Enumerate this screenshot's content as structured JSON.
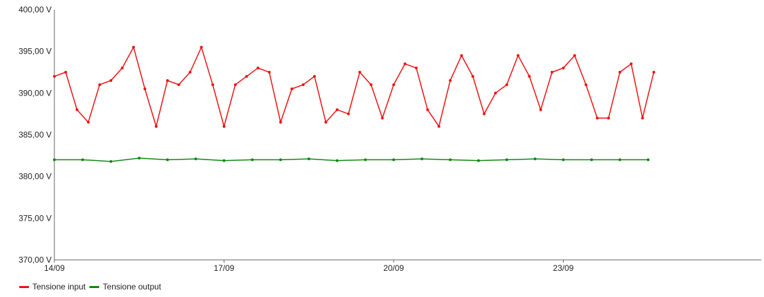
{
  "chart_data": {
    "type": "line",
    "title": "",
    "xlabel": "",
    "ylabel": "",
    "ylim": [
      370,
      400
    ],
    "yticks": [
      "370,00 V",
      "375,00 V",
      "380,00 V",
      "385,00 V",
      "390,00 V",
      "395,00 V",
      "400,00 V"
    ],
    "xlim": [
      0,
      12.5
    ],
    "xticks": [
      {
        "x": 0,
        "label": "14/09"
      },
      {
        "x": 3,
        "label": "17/09"
      },
      {
        "x": 6,
        "label": "20/09"
      },
      {
        "x": 9,
        "label": "23/09"
      }
    ],
    "grid": false,
    "legend_position": "bottom-left",
    "series": [
      {
        "name": "Tensione input",
        "color": "#ee1111",
        "x": [
          0.0,
          0.2,
          0.4,
          0.6,
          0.8,
          1.0,
          1.2,
          1.4,
          1.6,
          1.8,
          2.0,
          2.2,
          2.4,
          2.6,
          2.8,
          3.0,
          3.2,
          3.4,
          3.6,
          3.8,
          4.0,
          4.2,
          4.4,
          4.6,
          4.8,
          5.0,
          5.2,
          5.4,
          5.6,
          5.8,
          6.0,
          6.2,
          6.4,
          6.6,
          6.8,
          7.0,
          7.2,
          7.4,
          7.6,
          7.8,
          8.0,
          8.2,
          8.4,
          8.6,
          8.8,
          9.0,
          9.2,
          9.4,
          9.6,
          9.8,
          10.0,
          10.2,
          10.4,
          10.6
        ],
        "y": [
          392.0,
          392.5,
          388.0,
          386.5,
          391.0,
          391.5,
          393.0,
          395.5,
          390.5,
          386.0,
          391.5,
          391.0,
          392.5,
          395.5,
          391.0,
          386.0,
          391.0,
          392.0,
          393.0,
          392.5,
          386.5,
          390.5,
          391.0,
          392.0,
          386.5,
          388.0,
          387.5,
          392.5,
          391.0,
          387.0,
          391.0,
          393.5,
          393.0,
          388.0,
          386.0,
          391.5,
          394.5,
          392.0,
          387.5,
          390.0,
          391.0,
          394.5,
          392.0,
          388.0,
          392.5,
          393.0,
          394.5,
          391.0,
          387.0,
          387.0,
          392.5,
          393.5,
          387.0,
          392.5
        ]
      },
      {
        "name": "Tensione output",
        "color": "#118811",
        "x": [
          0.0,
          0.5,
          1.0,
          1.5,
          2.0,
          2.5,
          3.0,
          3.5,
          4.0,
          4.5,
          5.0,
          5.5,
          6.0,
          6.5,
          7.0,
          7.5,
          8.0,
          8.5,
          9.0,
          9.5,
          10.0,
          10.5
        ],
        "y": [
          382.0,
          382.0,
          381.8,
          382.2,
          382.0,
          382.1,
          381.9,
          382.0,
          382.0,
          382.1,
          381.9,
          382.0,
          382.0,
          382.1,
          382.0,
          381.9,
          382.0,
          382.1,
          382.0,
          382.0,
          382.0,
          382.0
        ]
      }
    ]
  }
}
